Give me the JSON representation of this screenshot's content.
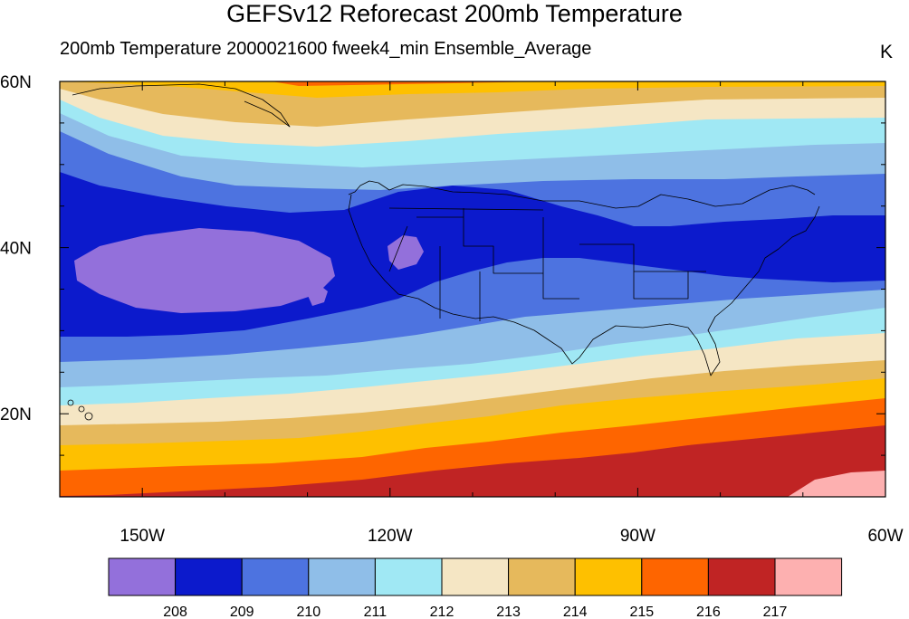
{
  "title": "GEFSv12 Reforecast 200mb Temperature",
  "subtitle": "200mb Temperature  2000021600 fweek4_min Ensemble_Average",
  "units": "K",
  "map": {
    "lon_range": [
      -160,
      -60
    ],
    "lat_range": [
      10,
      60
    ],
    "lat_ticks": [
      {
        "value": 20,
        "label": "20N"
      },
      {
        "value": 40,
        "label": "40N"
      },
      {
        "value": 60,
        "label": "60N"
      }
    ],
    "lon_ticks": [
      {
        "value": -150,
        "label": "150W"
      },
      {
        "value": -120,
        "label": "120W"
      },
      {
        "value": -90,
        "label": "90W"
      },
      {
        "value": -60,
        "label": "60W"
      }
    ],
    "minor_lat_step": 5,
    "minor_lon_step": 10
  },
  "colorbar": {
    "levels": [
      "208",
      "209",
      "210",
      "211",
      "212",
      "213",
      "214",
      "215",
      "216",
      "217"
    ],
    "colors": [
      "#9370db",
      "#0c1acc",
      "#4d73e0",
      "#8fbee8",
      "#a0e8f4",
      "#f5e6c4",
      "#e6b95c",
      "#fec000",
      "#fe6500",
      "#c02424",
      "#fdb0b0"
    ]
  }
}
